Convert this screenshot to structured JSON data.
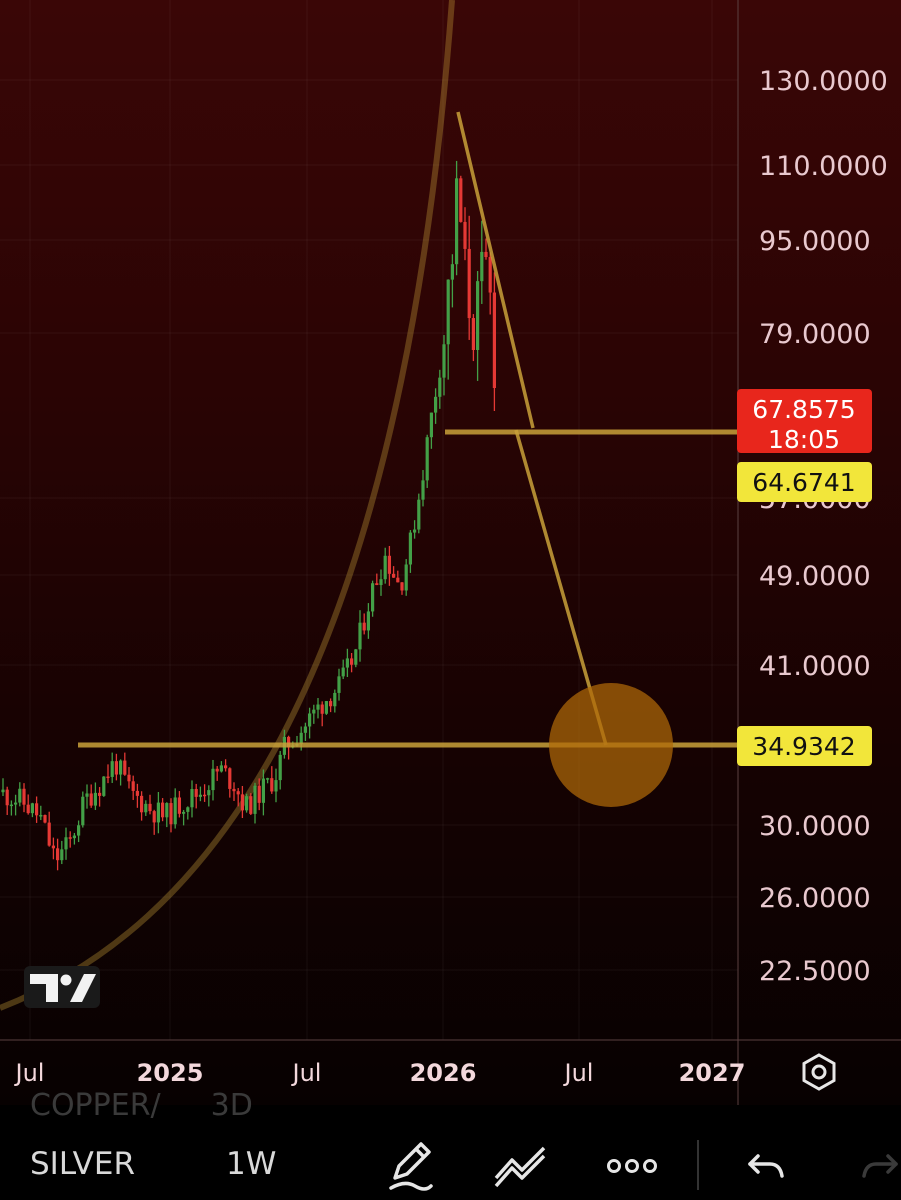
{
  "chart_data": {
    "type": "candlestick",
    "y_scale": "log",
    "y_ticks": [
      "130.0000",
      "110.0000",
      "95.0000",
      "79.0000",
      "57.0000",
      "49.0000",
      "41.0000",
      "30.0000",
      "26.0000",
      "22.5000"
    ],
    "x_ticks": [
      "Jul",
      "2025",
      "Jul",
      "2026",
      "Jul",
      "2027"
    ],
    "price_tags": {
      "last_price": "67.8575",
      "countdown": "18:05",
      "level_upper": "64.6741",
      "level_lower": "34.9342"
    },
    "colors": {
      "up": "#43a047",
      "down": "#e53935",
      "drawing": "#c9a13a",
      "target_circle": "#b06a08",
      "last_tag": "#e8261c",
      "level_tag": "#f2e63a"
    }
  },
  "bottom_bar": {
    "prev_symbol": "COPPER/",
    "prev_interval": "3D",
    "symbol": "SILVER",
    "interval": "1W"
  },
  "icons": [
    "tradingview-logo-icon",
    "chart-settings-icon",
    "pencil-icon",
    "drawing-tools-icon",
    "more-icon",
    "undo-icon",
    "redo-icon"
  ]
}
